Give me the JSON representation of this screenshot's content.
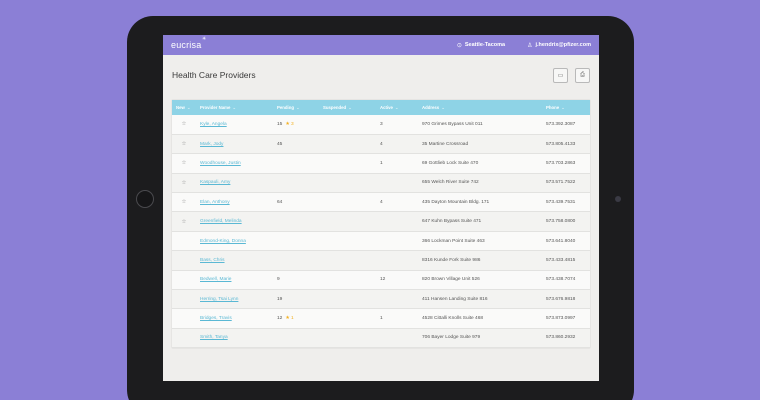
{
  "topbar": {
    "logo": "eucrisa",
    "location": "Seattle-Tacoma",
    "user": "j.hendrix@pfizer.com"
  },
  "page": {
    "title": "Health Care Providers"
  },
  "table": {
    "columns": [
      "New",
      "Provider Name",
      "Pending",
      "Suspended",
      "Active",
      "Address",
      "Phone"
    ],
    "rows": [
      {
        "new": true,
        "name": "Kyle, Angela",
        "pending": "15",
        "flag": "3",
        "suspended": "",
        "active": "3",
        "address": "970 Grimes Bypass Unit 011",
        "phone": "573.392.3087"
      },
      {
        "new": true,
        "name": "Mark, Jody",
        "pending": "45",
        "flag": "",
        "suspended": "",
        "active": "4",
        "address": "35 Martine Crossroad",
        "phone": "573.805.4133"
      },
      {
        "new": true,
        "name": "Woodhouse, Justin",
        "pending": "",
        "flag": "",
        "suspended": "",
        "active": "1",
        "address": "69 Gottlieb Lock Suite 470",
        "phone": "573.703.2863"
      },
      {
        "new": true,
        "name": "Kaspauli, Amy",
        "pending": "",
        "flag": "",
        "suspended": "",
        "active": "",
        "address": "655 Welch River Suite 742",
        "phone": "573.571.7522"
      },
      {
        "new": true,
        "name": "Elan, Anthony",
        "pending": "64",
        "flag": "",
        "suspended": "",
        "active": "4",
        "address": "435 Dayton Mountain Bldg. 171",
        "phone": "573.439.7531"
      },
      {
        "new": true,
        "name": "Greenfield, Melinda",
        "pending": "",
        "flag": "",
        "suspended": "",
        "active": "",
        "address": "647 Kuhn Bypass Suite 471",
        "phone": "573.758.0800"
      },
      {
        "new": false,
        "name": "Edmond-King, Donna",
        "pending": "",
        "flag": "",
        "suspended": "",
        "active": "",
        "address": "366 Lockman Point Suite 463",
        "phone": "573.641.8040"
      },
      {
        "new": false,
        "name": "Bass, Chris",
        "pending": "",
        "flag": "",
        "suspended": "",
        "active": "",
        "address": "8316 Kunde Fork Suite 986",
        "phone": "573.433.4815"
      },
      {
        "new": false,
        "name": "Bedwell, Marie",
        "pending": "9",
        "flag": "",
        "suspended": "",
        "active": "12",
        "address": "820 Brown Village Unit 526",
        "phone": "573.438.7074"
      },
      {
        "new": false,
        "name": "Herring, Tsai Lynn",
        "pending": "19",
        "flag": "",
        "suspended": "",
        "active": "",
        "address": "411 Hansen Landing Suite 816",
        "phone": "573.676.9818"
      },
      {
        "new": false,
        "name": "Bridges, Travis",
        "pending": "12",
        "flag": "1",
        "suspended": "",
        "active": "1",
        "address": "4528 Cittalli Knolls Suite 468",
        "phone": "573.873.0997"
      },
      {
        "new": false,
        "name": "Smith, Tanya",
        "pending": "",
        "flag": "",
        "suspended": "",
        "active": "",
        "address": "706 Bayer Lodge Suite 979",
        "phone": "573.860.2932"
      }
    ]
  },
  "colors": {
    "background": "#8b7fd6",
    "topbar": "#8b7fd6",
    "table_header": "#8ed3e6",
    "link": "#5ab8d4",
    "flag": "#f3b021"
  },
  "icons": {
    "new_marker": "star-outline-icon",
    "pending_flag": "star-filled-icon",
    "location": "map-pin-icon",
    "user": "user-icon",
    "header_button_1": "archive-icon",
    "header_button_2": "print-icon"
  }
}
